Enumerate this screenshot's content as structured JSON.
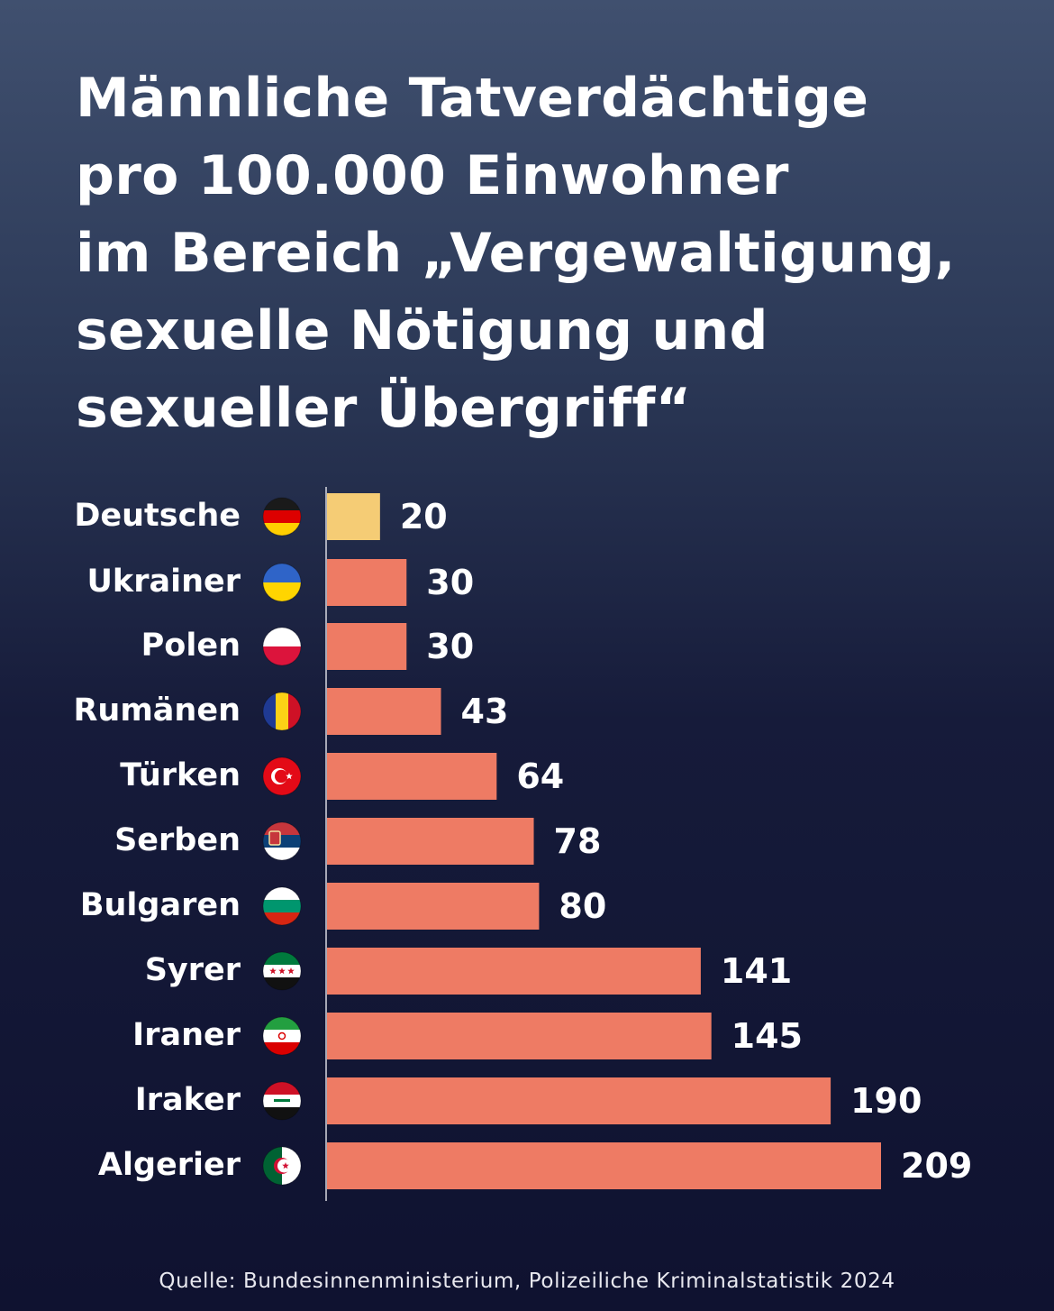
{
  "title_lines": [
    "Männliche Tatverdächtige",
    "pro 100.000 Einwohner",
    "im Bereich „Vergewaltigung,",
    "sexuelle Nötigung und",
    "sexueller Übergriff“"
  ],
  "source": "Quelle: Bundesinnenministerium, Polizeiliche Kriminalstatistik 2024",
  "colors": {
    "highlight_bar": "#f5cc75",
    "bar": "#ee7b64",
    "text": "#ffffff"
  },
  "chart_data": {
    "type": "bar",
    "orientation": "horizontal",
    "categories": [
      "Deutsche",
      "Ukrainer",
      "Polen",
      "Rumänen",
      "Türken",
      "Serben",
      "Bulgaren",
      "Syrer",
      "Iraner",
      "Iraker",
      "Algerier"
    ],
    "values": [
      20,
      30,
      30,
      43,
      64,
      78,
      80,
      141,
      145,
      190,
      209
    ],
    "highlighted_category": "Deutsche",
    "flag_icons": [
      "germany-flag-icon",
      "ukraine-flag-icon",
      "poland-flag-icon",
      "romania-flag-icon",
      "turkey-flag-icon",
      "serbia-flag-icon",
      "bulgaria-flag-icon",
      "syria-flag-icon",
      "iran-flag-icon",
      "iraq-flag-icon",
      "algeria-flag-icon"
    ],
    "xlim": [
      0,
      209
    ],
    "grid": false,
    "legend": "none"
  }
}
